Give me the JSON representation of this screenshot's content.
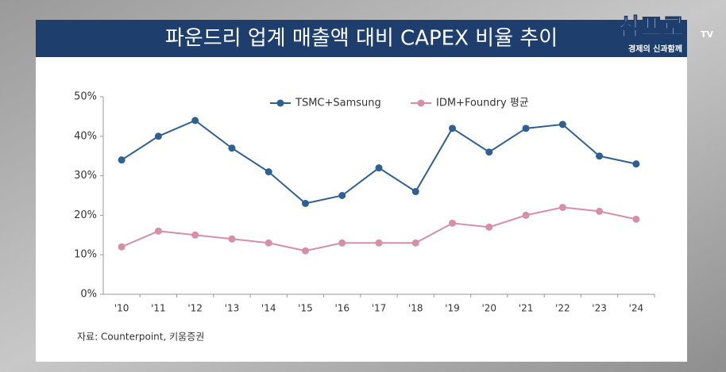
{
  "chart_data": {
    "type": "line",
    "title": "파운드리 업계 매출액 대비 CAPEX 비율 추이",
    "categories": [
      "'10",
      "'11",
      "'12",
      "'13",
      "'14",
      "'15",
      "'16",
      "'17",
      "'18",
      "'19",
      "'20",
      "'21",
      "'22",
      "'23",
      "'24"
    ],
    "series": [
      {
        "name": "TSMC+Samsung",
        "color": "#2e6093",
        "values": [
          34,
          40,
          44,
          37,
          31,
          23,
          25,
          32,
          26,
          42,
          36,
          42,
          43,
          35,
          33
        ]
      },
      {
        "name": "IDM+Foundry  평균",
        "color": "#d68fa5",
        "values": [
          12,
          16,
          15,
          14,
          13,
          11,
          13,
          13,
          13,
          18,
          17,
          20,
          22,
          21,
          19
        ]
      }
    ],
    "ylim": [
      0,
      50
    ],
    "yticks": [
      {
        "value": 0,
        "label": "0%"
      },
      {
        "value": 10,
        "label": "10%"
      },
      {
        "value": 20,
        "label": "20%"
      },
      {
        "value": 30,
        "label": "30%"
      },
      {
        "value": 40,
        "label": "40%"
      },
      {
        "value": 50,
        "label": "50%"
      }
    ],
    "grid": false,
    "legend": "top",
    "source": "자료: Counterpoint, 키움증권"
  },
  "logo": {
    "name": "삼프로",
    "tv": "TV",
    "slogan": "경제의 신과함께"
  }
}
